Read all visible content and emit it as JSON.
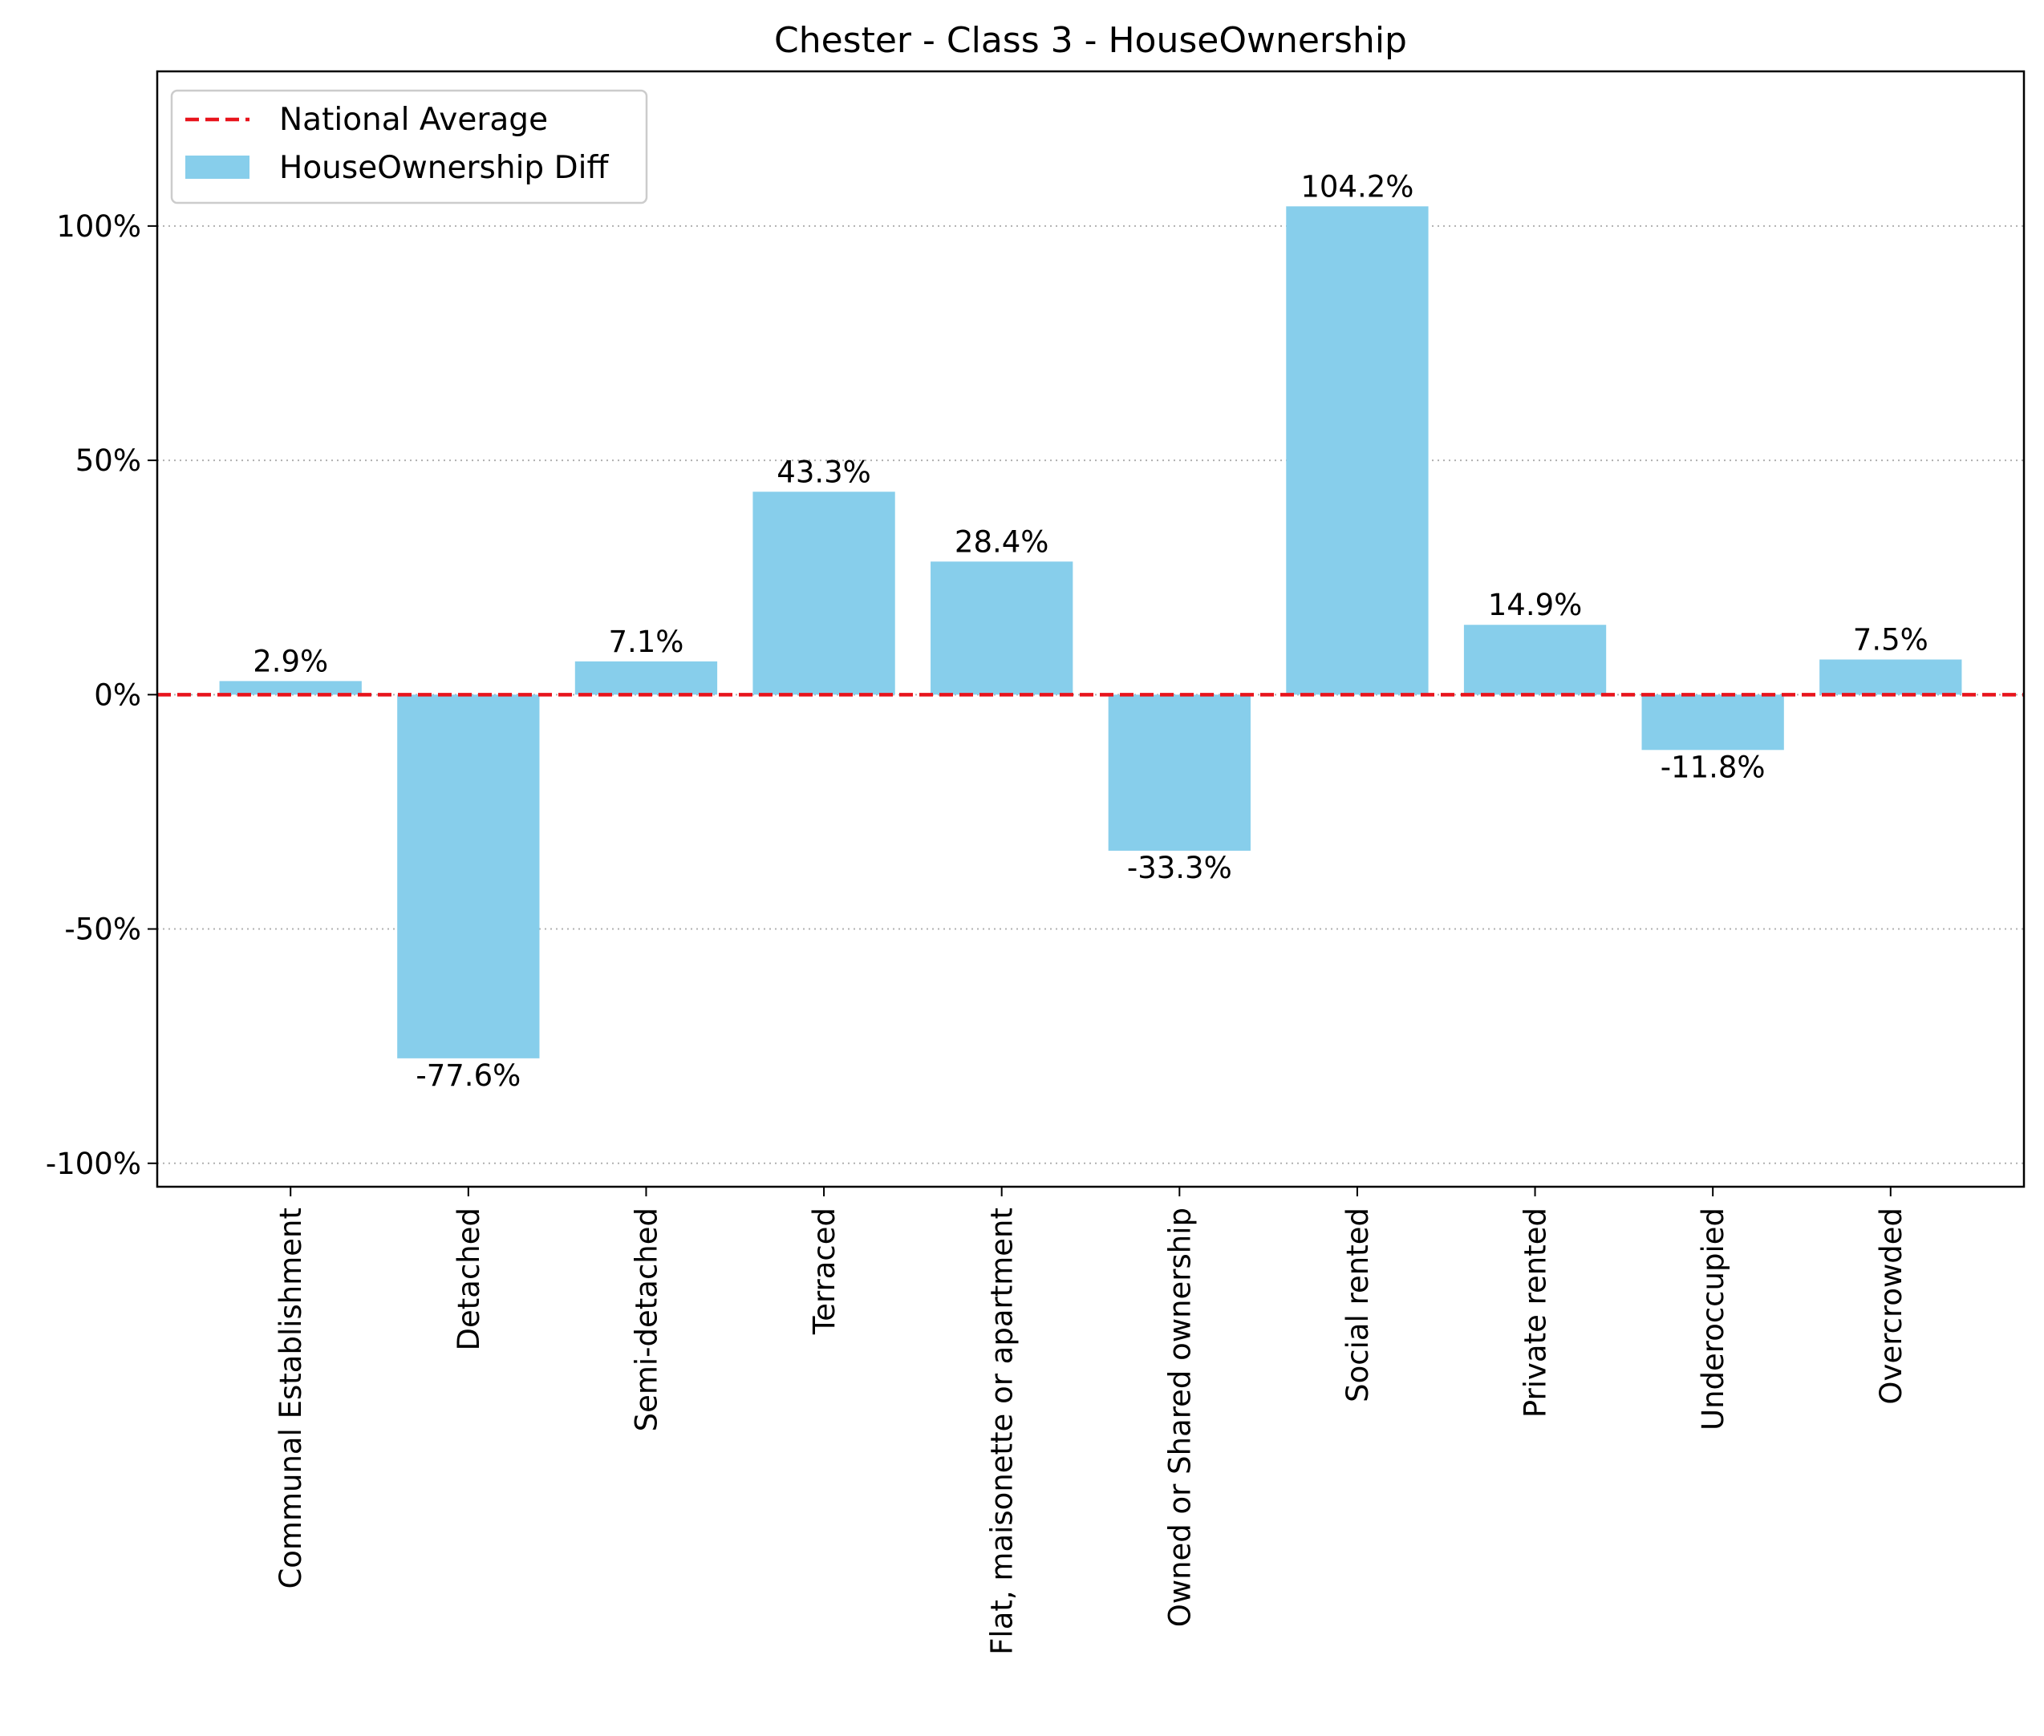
{
  "chart_data": {
    "type": "bar",
    "title": "Chester - Class 3 - HouseOwnership",
    "xlabel": "",
    "ylabel": "",
    "categories": [
      "Communal Establishment",
      "Detached",
      "Semi-detached",
      "Terraced",
      "Flat, maisonette or apartment",
      "Owned or Shared ownership",
      "Social rented",
      "Private rented",
      "Underoccupied",
      "Overcrowded"
    ],
    "series": [
      {
        "name": "HouseOwnership Diff",
        "values": [
          2.9,
          -77.6,
          7.1,
          43.3,
          28.4,
          -33.3,
          104.2,
          14.9,
          -11.8,
          7.5
        ],
        "labels": [
          "2.9%",
          "-77.6%",
          "7.1%",
          "43.3%",
          "28.4%",
          "-33.3%",
          "104.2%",
          "14.9%",
          "-11.8%",
          "7.5%"
        ]
      }
    ],
    "reference_line": {
      "name": "National Average",
      "value": 0,
      "color": "#e8141c",
      "style": "dashed"
    },
    "ylim": [
      -105,
      133
    ],
    "yticks": [
      -100,
      -50,
      0,
      50,
      100
    ],
    "ytick_labels": [
      "-100%",
      "-50%",
      "0%",
      "50%",
      "100%"
    ],
    "grid": {
      "y": true,
      "style": "dotted"
    },
    "legend": {
      "position": "top-left",
      "entries": [
        "National Average",
        "HouseOwnership Diff"
      ]
    },
    "colors": {
      "bar": "#87ceeb",
      "reference_line": "#e8141c",
      "grid": "#b0b0b0",
      "axes": "#000000"
    }
  }
}
